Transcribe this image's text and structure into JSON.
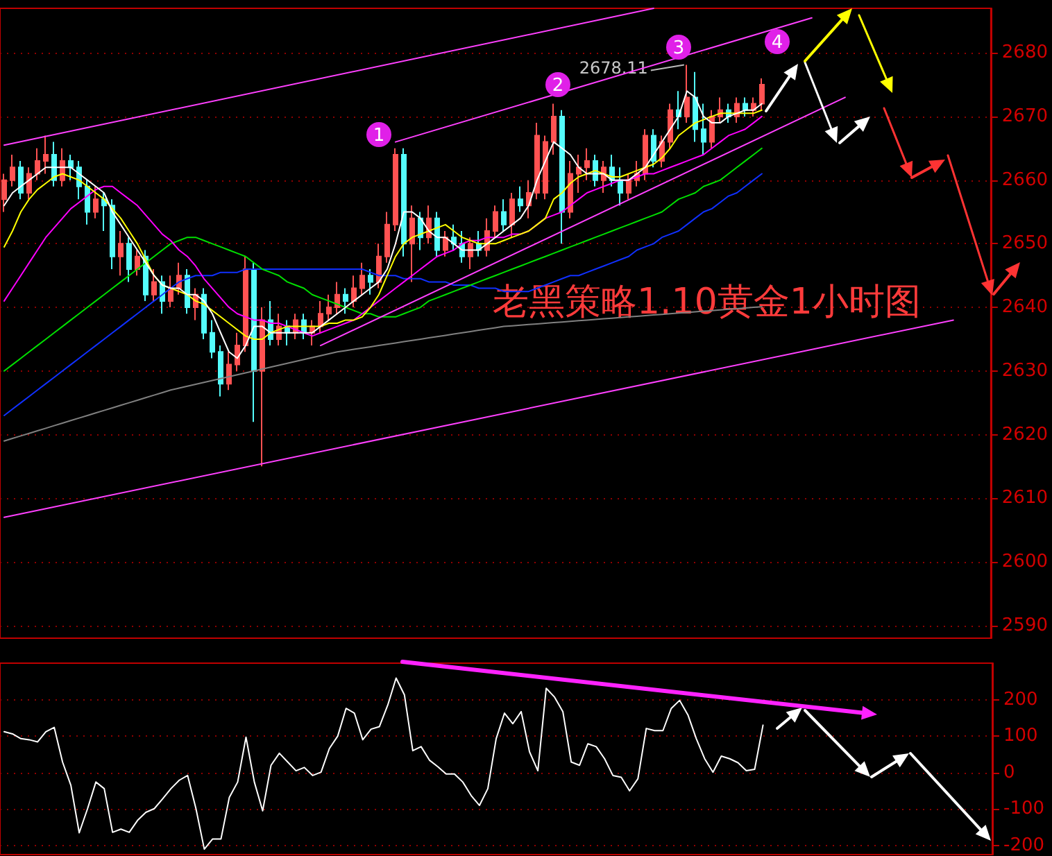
{
  "chart_data": [
    {
      "type": "candlestick",
      "categories": [
        null,
        null,
        null,
        null,
        null,
        null,
        null,
        null,
        null,
        null,
        null,
        null,
        null,
        null,
        null,
        null,
        null,
        null,
        null,
        null,
        null,
        null,
        null,
        null,
        null,
        null,
        null,
        null,
        null,
        null,
        null,
        null,
        null,
        null,
        null,
        null,
        null,
        null,
        null,
        null,
        null,
        null,
        null,
        null,
        null,
        null,
        null,
        null,
        null,
        null,
        null,
        null,
        null,
        null,
        null,
        null,
        null,
        null,
        null,
        null,
        null,
        null,
        null,
        null,
        null,
        null,
        null,
        null,
        null,
        null,
        null,
        null,
        null,
        null,
        null,
        null,
        null,
        null,
        null,
        null,
        null,
        null,
        null,
        null,
        null,
        null,
        null,
        null,
        null,
        null,
        null,
        null,
        null,
        null,
        null,
        null,
        null,
        null,
        null,
        null,
        null,
        null,
        null,
        null,
        null,
        null,
        null,
        null,
        null,
        null,
        null,
        null,
        null,
        null,
        null,
        null,
        null,
        null,
        null
      ],
      "ohlc": [
        [
          2657,
          2661,
          2655,
          2660
        ],
        [
          2660,
          2664,
          2659,
          2662
        ],
        [
          2662,
          2663,
          2657,
          2658
        ],
        [
          2658,
          2662,
          2657,
          2661
        ],
        [
          2661,
          2665,
          2660,
          2663
        ],
        [
          2663,
          2667,
          2661,
          2664
        ],
        [
          2664,
          2666,
          2659,
          2660
        ],
        [
          2660,
          2665,
          2659,
          2663
        ],
        [
          2663,
          2664,
          2660,
          2662
        ],
        [
          2662,
          2663,
          2657,
          2659
        ],
        [
          2659,
          2660,
          2653,
          2655
        ],
        [
          2655,
          2659,
          2654,
          2657
        ],
        [
          2657,
          2658,
          2652,
          2656
        ],
        [
          2656,
          2657,
          2646,
          2648
        ],
        [
          2648,
          2652,
          2645,
          2650
        ],
        [
          2650,
          2651,
          2644,
          2646
        ],
        [
          2646,
          2649,
          2645,
          2648
        ],
        [
          2648,
          2649,
          2641,
          2642
        ],
        [
          2642,
          2646,
          2641,
          2644
        ],
        [
          2644,
          2645,
          2639,
          2641
        ],
        [
          2641,
          2645,
          2640,
          2643
        ],
        [
          2643,
          2647,
          2642,
          2645
        ],
        [
          2645,
          2646,
          2639,
          2640
        ],
        [
          2640,
          2643,
          2638,
          2642
        ],
        [
          2642,
          2643,
          2635,
          2636
        ],
        [
          2636,
          2638,
          2632,
          2633
        ],
        [
          2633,
          2634,
          2626,
          2628
        ],
        [
          2628,
          2633,
          2627,
          2631
        ],
        [
          2631,
          2636,
          2630,
          2634
        ],
        [
          2634,
          2648,
          2633,
          2646
        ],
        [
          2646,
          2647,
          2622,
          2630
        ],
        [
          2630,
          2640,
          2615,
          2638
        ],
        [
          2638,
          2641,
          2634,
          2635
        ],
        [
          2635,
          2639,
          2634,
          2637
        ],
        [
          2637,
          2638,
          2634,
          2636
        ],
        [
          2636,
          2639,
          2635,
          2638
        ],
        [
          2638,
          2639,
          2635,
          2636
        ],
        [
          2636,
          2638,
          2634,
          2637
        ],
        [
          2637,
          2641,
          2636,
          2639
        ],
        [
          2639,
          2642,
          2638,
          2640
        ],
        [
          2640,
          2644,
          2639,
          2642
        ],
        [
          2642,
          2643,
          2639,
          2641
        ],
        [
          2641,
          2645,
          2640,
          2643
        ],
        [
          2643,
          2647,
          2642,
          2645
        ],
        [
          2645,
          2646,
          2642,
          2644
        ],
        [
          2644,
          2650,
          2643,
          2648
        ],
        [
          2648,
          2655,
          2647,
          2653
        ],
        [
          2653,
          2665,
          2652,
          2664
        ],
        [
          2664,
          2665,
          2648,
          2650
        ],
        [
          2650,
          2656,
          2644,
          2654
        ],
        [
          2654,
          2655,
          2649,
          2651
        ],
        [
          2651,
          2656,
          2650,
          2654
        ],
        [
          2654,
          2655,
          2648,
          2649
        ],
        [
          2649,
          2652,
          2648,
          2651
        ],
        [
          2651,
          2653,
          2649,
          2650
        ],
        [
          2650,
          2652,
          2647,
          2648
        ],
        [
          2648,
          2651,
          2646,
          2650
        ],
        [
          2650,
          2652,
          2648,
          2649
        ],
        [
          2649,
          2654,
          2648,
          2652
        ],
        [
          2652,
          2656,
          2651,
          2655
        ],
        [
          2655,
          2657,
          2652,
          2653
        ],
        [
          2653,
          2658,
          2651,
          2657
        ],
        [
          2657,
          2659,
          2655,
          2656
        ],
        [
          2656,
          2660,
          2654,
          2658
        ],
        [
          2658,
          2669,
          2657,
          2667
        ],
        [
          2658,
          2667,
          2657,
          2666
        ],
        [
          2666,
          2672,
          2664,
          2670
        ],
        [
          2670,
          2671,
          2650,
          2655
        ],
        [
          2655,
          2663,
          2654,
          2661
        ],
        [
          2661,
          2664,
          2658,
          2662
        ],
        [
          2662,
          2665,
          2660,
          2663
        ],
        [
          2663,
          2664,
          2659,
          2660
        ],
        [
          2660,
          2663,
          2658,
          2662
        ],
        [
          2662,
          2664,
          2659,
          2660
        ],
        [
          2660,
          2662,
          2656,
          2658
        ],
        [
          2658,
          2661,
          2657,
          2660
        ],
        [
          2660,
          2663,
          2659,
          2661
        ],
        [
          2661,
          2668,
          2660,
          2667
        ],
        [
          2667,
          2668,
          2662,
          2663
        ],
        [
          2663,
          2667,
          2662,
          2666
        ],
        [
          2666,
          2672,
          2665,
          2671
        ],
        [
          2671,
          2674,
          2668,
          2670
        ],
        [
          2670,
          2678.11,
          2669,
          2673
        ],
        [
          2673,
          2677,
          2666,
          2668
        ],
        [
          2668,
          2672,
          2664,
          2666
        ],
        [
          2666,
          2671,
          2665,
          2670
        ],
        [
          2670,
          2673,
          2669,
          2671
        ],
        [
          2671,
          2672,
          2669,
          2670
        ],
        [
          2670,
          2673,
          2669,
          2672
        ],
        [
          2672,
          2673,
          2670,
          2671
        ],
        [
          2671,
          2673,
          2670,
          2672
        ],
        [
          2672,
          2676,
          2671,
          2675
        ],
        null,
        null,
        null,
        null,
        null,
        null,
        null,
        null,
        null,
        null,
        null,
        null,
        null,
        null,
        null,
        null,
        null,
        null,
        null,
        null,
        null,
        null,
        null,
        null,
        null,
        null,
        null
      ],
      "series": [
        {
          "type": "line",
          "color": "#808080",
          "values": [
            2619,
            2619.4,
            2619.8,
            2620.2,
            2620.6,
            2621,
            2621.4,
            2621.8,
            2622.2,
            2622.6,
            2623,
            2623.4,
            2623.8,
            2624.2,
            2624.6,
            2625,
            2625.4,
            2625.8,
            2626.2,
            2626.6,
            2627,
            2627.3,
            2627.6,
            2627.9,
            2628.2,
            2628.5,
            2628.8,
            2629.1,
            2629.4,
            2629.7,
            2630,
            2630.3,
            2630.6,
            2630.9,
            2631.2,
            2631.5,
            2631.8,
            2632.1,
            2632.4,
            2632.7,
            2633,
            2633.2,
            2633.4,
            2633.6,
            2633.8,
            2634,
            2634.2,
            2634.4,
            2634.6,
            2634.8,
            2635,
            2635.2,
            2635.4,
            2635.6,
            2635.8,
            2636,
            2636.2,
            2636.4,
            2636.6,
            2636.8,
            2637,
            2637.1,
            2637.2,
            2637.3,
            2637.4,
            2637.5,
            2637.6,
            2637.7,
            2637.8,
            2637.9,
            2638,
            2638.1,
            2638.2,
            2638.3,
            2638.4,
            2638.5,
            2638.6,
            2638.7,
            2638.8,
            2638.9,
            2639,
            2639.1,
            2639.2,
            2639.3,
            2639.4,
            2639.5,
            2639.6,
            2639.7,
            2639.8,
            2639.9,
            2640,
            2640.1,
            null,
            null,
            null,
            null,
            null,
            null,
            null,
            null,
            null,
            null,
            null,
            null,
            null,
            null,
            null,
            null,
            null,
            null,
            null,
            null,
            null,
            null,
            null,
            null,
            null,
            null,
            null
          ]
        },
        {
          "type": "line",
          "color": "#1030ff",
          "values": [
            2623,
            2624,
            2625,
            2626,
            2627,
            2628,
            2629,
            2630,
            2631,
            2632,
            2633,
            2634,
            2635,
            2636,
            2637,
            2638,
            2639,
            2640,
            2641,
            2642,
            2643,
            2644,
            2644.5,
            2645,
            2645,
            2645,
            2645.5,
            2645.5,
            2645.5,
            2646,
            2646,
            2646,
            2646,
            2646,
            2646,
            2646,
            2646,
            2646,
            2646,
            2646,
            2646,
            2646,
            2646,
            2646,
            2645.5,
            2645,
            2645,
            2645,
            2644.5,
            2644.5,
            2644.5,
            2644,
            2644,
            2644,
            2643.5,
            2643.5,
            2643.5,
            2643,
            2643,
            2643,
            2642.5,
            2642.5,
            2642.5,
            2642.5,
            2643,
            2643.5,
            2644,
            2644.5,
            2645,
            2645,
            2645.5,
            2646,
            2646.5,
            2647,
            2647.5,
            2648,
            2649,
            2649.5,
            2650,
            2651,
            2651.5,
            2652,
            2653,
            2654,
            2655,
            2655.5,
            2656.5,
            2657.5,
            2658,
            2659,
            2660,
            2661,
            null,
            null,
            null,
            null,
            null,
            null,
            null,
            null,
            null,
            null,
            null,
            null,
            null,
            null,
            null,
            null,
            null,
            null,
            null,
            null,
            null,
            null,
            null,
            null,
            null,
            null,
            null
          ]
        },
        {
          "type": "line",
          "color": "#00e000",
          "values": [
            2630,
            2631,
            2632,
            2633,
            2634,
            2635,
            2636,
            2637,
            2638,
            2639,
            2640,
            2641,
            2642,
            2643,
            2644,
            2645,
            2646,
            2647,
            2648,
            2649,
            2650,
            2650.5,
            2651,
            2651,
            2650.5,
            2650,
            2649.5,
            2649,
            2648.5,
            2648,
            2647,
            2646,
            2645.5,
            2645,
            2644,
            2643.5,
            2643,
            2642,
            2641.5,
            2641,
            2640.5,
            2640,
            2639.5,
            2639,
            2639,
            2638.5,
            2638.5,
            2638.5,
            2639,
            2639.5,
            2640,
            2641,
            2641.5,
            2642,
            2642.5,
            2643,
            2643.5,
            2644,
            2644.5,
            2645,
            2645.5,
            2646,
            2646.5,
            2647,
            2647.5,
            2648,
            2648.5,
            2649,
            2649.5,
            2650,
            2650.5,
            2651,
            2651.5,
            2652,
            2652.5,
            2653,
            2653.5,
            2654,
            2654.5,
            2655,
            2656,
            2657,
            2657.5,
            2658,
            2659,
            2659.5,
            2660,
            2661,
            2662,
            2663,
            2664,
            2665,
            null,
            null,
            null,
            null,
            null,
            null,
            null,
            null,
            null,
            null,
            null,
            null,
            null,
            null,
            null,
            null,
            null,
            null,
            null,
            null,
            null,
            null,
            null,
            null,
            null,
            null,
            null
          ]
        },
        {
          "type": "line",
          "color": "#ff00ff",
          "values": [
            2641,
            2643,
            2645,
            2647,
            2649,
            2651,
            2652.5,
            2654,
            2655.5,
            2656.5,
            2657.5,
            2658.5,
            2659,
            2659,
            2658,
            2657,
            2656,
            2654.5,
            2653,
            2651.5,
            2650.5,
            2649,
            2648,
            2646.5,
            2644.5,
            2643,
            2641.5,
            2640,
            2639,
            2638.5,
            2638,
            2638,
            2637.5,
            2637.5,
            2637,
            2636.5,
            2636,
            2635.5,
            2636,
            2636.5,
            2637,
            2637.5,
            2638,
            2639,
            2640,
            2641,
            2642,
            2643,
            2644,
            2645,
            2646,
            2647,
            2648,
            2648.5,
            2649,
            2650,
            2650.5,
            2650.5,
            2651,
            2651,
            2651,
            2651.5,
            2651.5,
            2652,
            2653,
            2654,
            2654.5,
            2655,
            2656,
            2657,
            2658,
            2658.5,
            2659,
            2659.5,
            2660,
            2660,
            2660.5,
            2661,
            2661,
            2661.5,
            2662,
            2662.5,
            2663,
            2663.5,
            2664,
            2665,
            2666,
            2667,
            2667.5,
            2668,
            2669,
            2670,
            null,
            null,
            null,
            null,
            null,
            null,
            null,
            null,
            null,
            null,
            null,
            null,
            null,
            null,
            null,
            null,
            null,
            null,
            null,
            null,
            null,
            null,
            null,
            null,
            null,
            null,
            null
          ]
        },
        {
          "type": "line",
          "color": "#ffff00",
          "values": [
            2649.5,
            2652,
            2655,
            2657,
            2658.5,
            2659.5,
            2660.5,
            2661,
            2660.5,
            2660,
            2659,
            2658,
            2657,
            2655.5,
            2654,
            2652,
            2650,
            2647.5,
            2645,
            2643.5,
            2643,
            2642.5,
            2642,
            2641,
            2640.5,
            2639.5,
            2638.5,
            2637.5,
            2636.5,
            2635.5,
            2635,
            2635,
            2636,
            2636.5,
            2637,
            2637,
            2637,
            2637,
            2637,
            2637.5,
            2637.5,
            2638,
            2638,
            2638.5,
            2640,
            2642,
            2645,
            2648,
            2650,
            2651,
            2651.5,
            2652,
            2652.5,
            2653,
            2652,
            2651,
            2650.5,
            2650,
            2650,
            2650,
            2650.5,
            2651,
            2651.5,
            2652,
            2653,
            2654,
            2657,
            2658,
            2659.5,
            2660.5,
            2661,
            2661.5,
            2661,
            2660.5,
            2660.5,
            2661,
            2661.5,
            2662,
            2662.5,
            2663.5,
            2665,
            2667,
            2668,
            2669,
            2669.5,
            2670,
            2670.5,
            2670.5,
            2670.5,
            2670.5,
            2670.5,
            2671,
            null,
            null,
            null,
            null,
            null,
            null,
            null,
            null,
            null,
            null,
            null,
            null,
            null,
            null,
            null,
            null,
            null,
            null,
            null,
            null,
            null,
            null,
            null,
            null,
            null,
            null,
            null
          ]
        },
        {
          "type": "line",
          "color": "#ffffff",
          "values": [
            2656,
            2658,
            2659,
            2660,
            2661,
            2662,
            2662,
            2662,
            2662,
            2661,
            2660,
            2659,
            2658,
            2655,
            2653,
            2651,
            2649,
            2647,
            2645,
            2643.5,
            2643,
            2643,
            2642,
            2642,
            2641,
            2639,
            2636,
            2633,
            2632,
            2634,
            2637,
            2637,
            2636,
            2636,
            2636,
            2636,
            2636,
            2636,
            2637,
            2638,
            2639,
            2640,
            2641,
            2642,
            2643,
            2644,
            2646,
            2650,
            2655,
            2655,
            2654,
            2652,
            2651,
            2651,
            2650,
            2649,
            2649,
            2649,
            2650,
            2651,
            2652,
            2653,
            2654,
            2656,
            2660,
            2663,
            2666,
            2665,
            2664,
            2662,
            2661,
            2661,
            2661,
            2660,
            2660,
            2660,
            2661,
            2662,
            2664,
            2666,
            2668,
            2670,
            2674,
            2673,
            2670,
            2669,
            2669,
            2670,
            2670.5,
            2671,
            2671,
            2672,
            null,
            null,
            null,
            null,
            null,
            null,
            null,
            null,
            null,
            null,
            null,
            null,
            null,
            null,
            null,
            null,
            null,
            null,
            null,
            null,
            null,
            null,
            null,
            null,
            null,
            null,
            null
          ]
        },
        {
          "type": "line",
          "color": "#ff40ff",
          "values": [
            2665.5,
            null,
            null,
            null,
            null,
            null,
            null,
            null,
            null,
            null,
            null,
            null,
            null,
            null,
            null,
            null,
            null,
            null,
            null,
            null,
            null,
            null,
            null,
            null,
            null,
            null,
            null,
            null,
            null,
            null,
            null,
            null,
            null,
            null,
            null,
            null,
            null,
            null,
            null,
            null,
            null,
            null,
            null,
            null,
            null,
            null,
            null,
            null,
            null,
            null,
            null,
            null,
            null,
            null,
            null,
            null,
            null,
            null,
            null,
            null,
            null,
            null,
            null,
            null,
            null,
            null,
            null,
            null,
            null,
            null,
            null,
            null,
            null,
            null,
            null,
            null,
            null,
            null,
            2687,
            null,
            null,
            null,
            null,
            null,
            null,
            null,
            null,
            null,
            null,
            null,
            null,
            null,
            null,
            null,
            null,
            null,
            null,
            null,
            null,
            null,
            null,
            null,
            null,
            null,
            null,
            null,
            null,
            null,
            null,
            null,
            null,
            null,
            null,
            null,
            null,
            null,
            null,
            null,
            null
          ]
        },
        {
          "type": "line",
          "color": "#ff40ff",
          "values": [
            null,
            null,
            null,
            null,
            null,
            null,
            null,
            null,
            null,
            null,
            null,
            null,
            null,
            null,
            null,
            null,
            null,
            null,
            null,
            null,
            null,
            null,
            null,
            null,
            null,
            null,
            null,
            null,
            null,
            null,
            null,
            null,
            null,
            null,
            null,
            null,
            null,
            null,
            null,
            null,
            null,
            null,
            null,
            null,
            null,
            null,
            null,
            2666,
            null,
            null,
            null,
            null,
            null,
            null,
            null,
            null,
            null,
            null,
            null,
            null,
            null,
            null,
            null,
            null,
            null,
            null,
            null,
            null,
            null,
            null,
            null,
            null,
            null,
            null,
            null,
            null,
            null,
            null,
            null,
            null,
            null,
            null,
            null,
            null,
            null,
            null,
            null,
            null,
            null,
            null,
            null,
            null,
            null,
            null,
            null,
            null,
            null,
            2685.5,
            null,
            null,
            null,
            null,
            null,
            null,
            null,
            null,
            null,
            null,
            null,
            null,
            null,
            null,
            null,
            null,
            null,
            null,
            null,
            null,
            null
          ]
        },
        {
          "type": "line",
          "color": "#ff40ff",
          "values": [
            2607,
            null,
            null,
            null,
            null,
            null,
            null,
            null,
            null,
            null,
            null,
            null,
            null,
            null,
            null,
            null,
            null,
            null,
            null,
            null,
            null,
            null,
            null,
            null,
            null,
            null,
            null,
            null,
            null,
            null,
            null,
            null,
            null,
            null,
            null,
            null,
            null,
            null,
            null,
            null,
            null,
            null,
            null,
            null,
            null,
            null,
            null,
            null,
            null,
            null,
            null,
            null,
            null,
            null,
            null,
            null,
            null,
            null,
            null,
            null,
            null,
            null,
            null,
            null,
            null,
            null,
            null,
            null,
            null,
            null,
            null,
            null,
            null,
            null,
            null,
            null,
            null,
            null,
            null,
            null,
            null,
            null,
            null,
            null,
            null,
            null,
            null,
            null,
            null,
            null,
            null,
            null,
            null,
            null,
            null,
            null,
            null,
            null,
            null,
            null,
            null,
            null,
            null,
            null,
            null,
            null,
            null,
            null,
            null,
            null,
            null,
            null,
            null,
            null,
            2638,
            null,
            null,
            null,
            null
          ]
        },
        {
          "type": "line",
          "color": "#ff40ff",
          "values": [
            null,
            null,
            null,
            null,
            null,
            null,
            null,
            null,
            null,
            null,
            null,
            null,
            null,
            null,
            null,
            null,
            null,
            null,
            null,
            null,
            null,
            null,
            null,
            null,
            null,
            null,
            null,
            null,
            null,
            null,
            null,
            null,
            null,
            null,
            null,
            null,
            null,
            null,
            2634,
            null,
            null,
            null,
            null,
            null,
            null,
            null,
            null,
            null,
            null,
            null,
            null,
            null,
            null,
            null,
            null,
            null,
            null,
            null,
            null,
            null,
            null,
            null,
            null,
            null,
            null,
            null,
            null,
            null,
            null,
            null,
            null,
            null,
            null,
            null,
            null,
            null,
            null,
            null,
            null,
            null,
            null,
            null,
            null,
            null,
            null,
            null,
            null,
            null,
            null,
            null,
            null,
            null,
            null,
            null,
            null,
            null,
            null,
            null,
            null,
            null,
            null,
            2673,
            null,
            null,
            null,
            null,
            null,
            null,
            null,
            null,
            null,
            null,
            null,
            null,
            null,
            null,
            null,
            null,
            null
          ]
        }
      ],
      "ylim": [
        2588,
        2687
      ],
      "yticks": [
        2590,
        2600,
        2610,
        2620,
        2630,
        2640,
        2650,
        2660,
        2670,
        2680
      ],
      "grid": "y",
      "tick_labels": "y",
      "annotations": [
        "老黑策略1.10黄金1小时图",
        "1",
        "2",
        "3",
        "4",
        "2678.11"
      ]
    },
    {
      "type": "line",
      "categories": [
        null,
        null,
        null,
        null,
        null,
        null,
        null,
        null,
        null,
        null,
        null,
        null,
        null,
        null,
        null,
        null,
        null,
        null,
        null,
        null,
        null,
        null,
        null,
        null,
        null,
        null,
        null,
        null,
        null,
        null,
        null,
        null,
        null,
        null,
        null,
        null,
        null,
        null,
        null,
        null,
        null,
        null,
        null,
        null,
        null,
        null,
        null,
        null,
        null,
        null,
        null,
        null,
        null,
        null,
        null,
        null,
        null,
        null,
        null,
        null,
        null,
        null,
        null,
        null,
        null,
        null,
        null,
        null,
        null,
        null,
        null,
        null,
        null,
        null,
        null,
        null,
        null,
        null,
        null,
        null,
        null,
        null,
        null,
        null,
        null,
        null,
        null,
        null,
        null,
        null,
        null,
        null,
        null,
        null,
        null,
        null,
        null,
        null,
        null,
        null,
        null,
        null,
        null,
        null,
        null,
        null,
        null,
        null,
        null,
        null,
        null,
        null,
        null,
        null,
        null,
        null,
        null,
        null,
        null
      ],
      "series": [
        {
          "color": "#ffffff",
          "values": [
            112,
            106,
            93,
            90,
            84,
            112,
            124,
            29,
            -35,
            -165,
            -99,
            -26,
            -44,
            -164,
            -155,
            -164,
            -131,
            -109,
            -99,
            -72,
            -44,
            -21,
            -8,
            -99,
            -210,
            -182,
            -182,
            -68,
            -26,
            97,
            -26,
            -105,
            20,
            53,
            29,
            5,
            14,
            -8,
            1,
            66,
            100,
            176,
            163,
            90,
            119,
            126,
            185,
            259,
            213,
            60,
            71,
            34,
            16,
            -4,
            -4,
            -26,
            -63,
            -90,
            -44,
            93,
            163,
            134,
            167,
            57,
            5,
            231,
            207,
            167,
            29,
            20,
            79,
            71,
            38,
            -8,
            -13,
            -50,
            -17,
            121,
            115,
            115,
            176,
            198,
            158,
            93,
            38,
            1,
            45,
            38,
            27,
            5,
            9,
            130,
            null,
            null,
            null,
            null,
            null,
            null,
            null,
            null,
            null,
            null,
            null,
            null,
            null,
            null,
            null,
            null,
            null,
            null,
            null,
            null,
            null,
            null,
            null,
            null,
            null,
            null,
            null
          ]
        }
      ],
      "ylim": [
        -225,
        300
      ],
      "yticks": [
        -200,
        -100,
        0,
        100,
        200
      ],
      "grid": "y",
      "tick_labels": "y"
    }
  ]
}
